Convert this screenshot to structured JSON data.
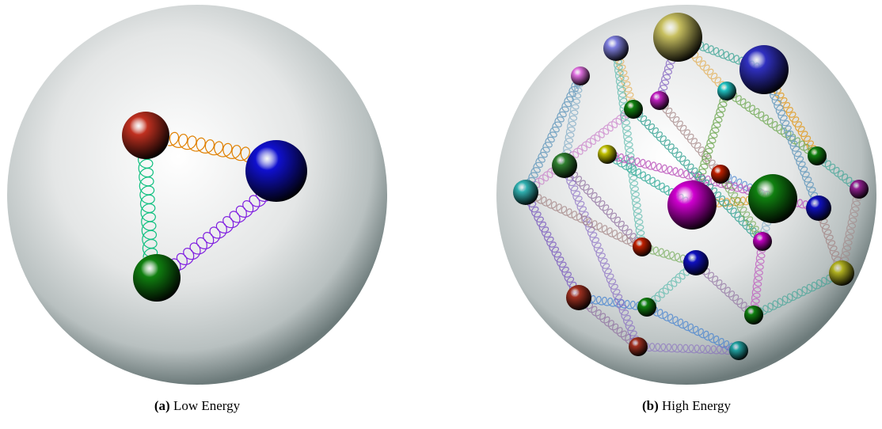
{
  "subfigures": [
    {
      "label": "(a)",
      "caption": "Low Energy"
    },
    {
      "label": "(b)",
      "caption": "High Energy"
    }
  ]
}
